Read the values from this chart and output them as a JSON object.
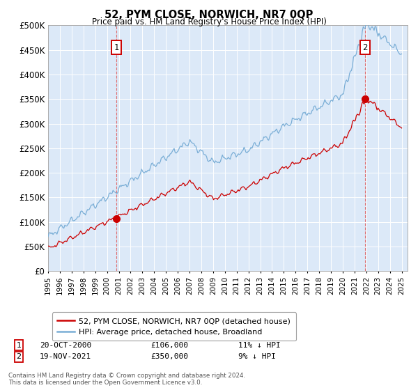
{
  "title": "52, PYM CLOSE, NORWICH, NR7 0QP",
  "subtitle": "Price paid vs. HM Land Registry's House Price Index (HPI)",
  "ylim": [
    0,
    500000
  ],
  "yticks": [
    0,
    50000,
    100000,
    150000,
    200000,
    250000,
    300000,
    350000,
    400000,
    450000,
    500000
  ],
  "xlim_start": 1995.0,
  "xlim_end": 2025.5,
  "hpi_color": "#7aaed6",
  "price_color": "#cc0000",
  "marker1_x": 2000.8,
  "marker1_y": 106000,
  "marker2_x": 2021.88,
  "marker2_y": 350000,
  "annotation1": [
    "20-OCT-2000",
    "£106,000",
    "11% ↓ HPI"
  ],
  "annotation2": [
    "19-NOV-2021",
    "£350,000",
    "9% ↓ HPI"
  ],
  "legend1": "52, PYM CLOSE, NORWICH, NR7 0QP (detached house)",
  "legend2": "HPI: Average price, detached house, Broadland",
  "footnote": "Contains HM Land Registry data © Crown copyright and database right 2024.\nThis data is licensed under the Open Government Licence v3.0.",
  "plot_bg_color": "#dce9f8"
}
